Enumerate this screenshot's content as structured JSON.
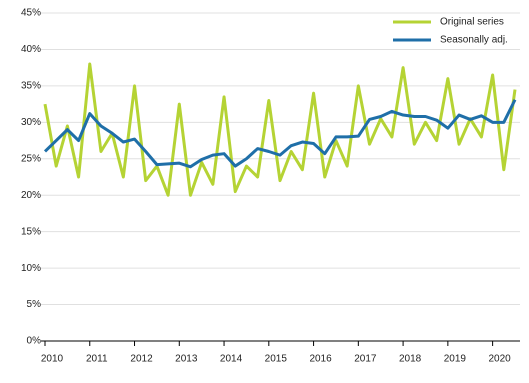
{
  "chart_data": {
    "type": "line",
    "categories": [
      "2010",
      null,
      null,
      null,
      "2011",
      null,
      null,
      null,
      "2012",
      null,
      null,
      null,
      "2013",
      null,
      null,
      null,
      "2014",
      null,
      null,
      null,
      "2015",
      null,
      null,
      null,
      "2016",
      null,
      null,
      null,
      "2017",
      null,
      null,
      null,
      "2018",
      null,
      null,
      null,
      "2019",
      null,
      null,
      null,
      "2020",
      null,
      null
    ],
    "series": [
      {
        "name": "Original series",
        "color": "#b5d334",
        "values": [
          32.5,
          24,
          29.5,
          22.5,
          38,
          26,
          28.5,
          22.5,
          35,
          22,
          24,
          20,
          32.5,
          20,
          24.5,
          21.5,
          33.5,
          20.5,
          24,
          22.5,
          33,
          22,
          26,
          23.5,
          34,
          22.5,
          27.5,
          24,
          35,
          27,
          30.5,
          28,
          37.5,
          27,
          30,
          27.5,
          36,
          27,
          30.5,
          28,
          36.5,
          23.5,
          34.5
        ]
      },
      {
        "name": "Seasonally adj.",
        "color": "#1f6fa8",
        "values": [
          26,
          27.5,
          29,
          27.5,
          31.2,
          29.5,
          28.5,
          27.3,
          27.7,
          26,
          24.2,
          24.3,
          24.4,
          23.9,
          24.9,
          25.5,
          25.7,
          24,
          25,
          26.4,
          26,
          25.5,
          26.8,
          27.3,
          27.1,
          25.7,
          28,
          28,
          28.1,
          30.4,
          30.8,
          31.5,
          31,
          30.8,
          30.8,
          30.3,
          29.2,
          31,
          30.4,
          30.9,
          30,
          30,
          33.1
        ]
      }
    ],
    "ylim": [
      0,
      45
    ],
    "yticks": [
      {
        "value": 0,
        "label": "0%"
      },
      {
        "value": 5,
        "label": "5%"
      },
      {
        "value": 10,
        "label": "10%"
      },
      {
        "value": 15,
        "label": "15%"
      },
      {
        "value": 20,
        "label": "20%"
      },
      {
        "value": 25,
        "label": "25%"
      },
      {
        "value": 30,
        "label": "30%"
      },
      {
        "value": 35,
        "label": "35%"
      },
      {
        "value": 40,
        "label": "40%"
      },
      {
        "value": 45,
        "label": "45%"
      }
    ],
    "grid": true,
    "legend": "top-right"
  }
}
